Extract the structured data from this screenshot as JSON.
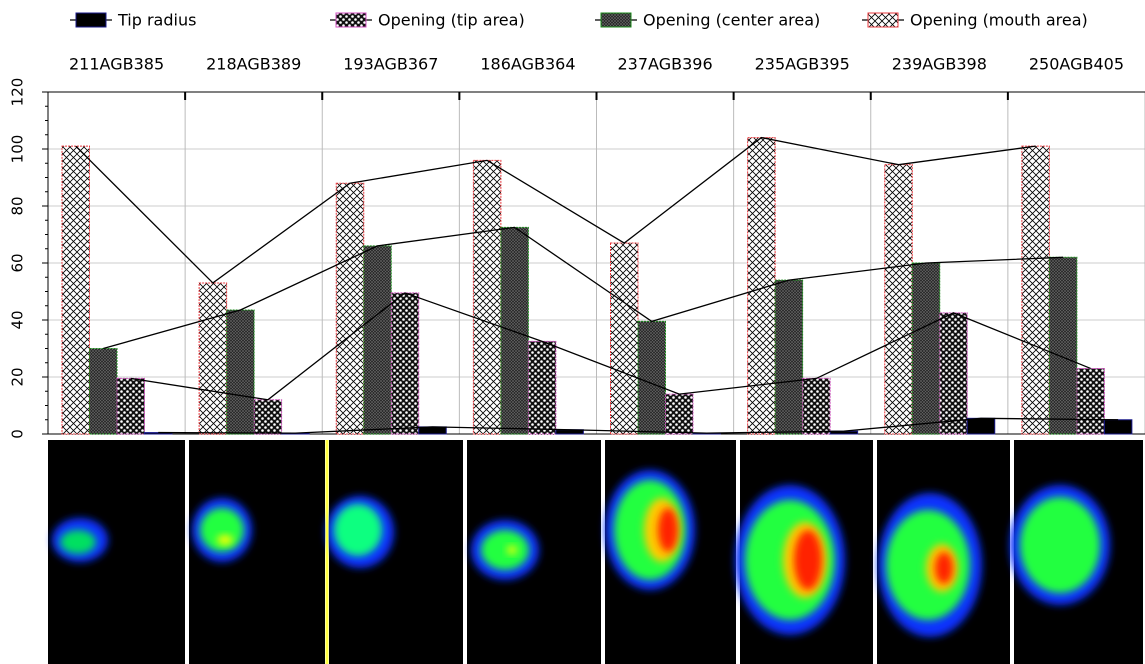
{
  "chart_data": {
    "type": "bar",
    "categories": [
      "211AGB385",
      "218AGB389",
      "193AGB367",
      "186AGB364",
      "237AGB396",
      "235AGB395",
      "239AGB398",
      "250AGB405"
    ],
    "series": [
      {
        "name": "Opening (mouth area)",
        "color": "#e8383d",
        "values": [
          101,
          53,
          88,
          96,
          67,
          104,
          94.5,
          101
        ]
      },
      {
        "name": "Opening (center area)",
        "color": "#1a8a1a",
        "values": [
          30,
          43.5,
          66,
          72.5,
          39.5,
          54,
          60,
          62
        ]
      },
      {
        "name": "Opening (tip area)",
        "color": "#d050c0",
        "values": [
          19.5,
          12,
          49.5,
          32.5,
          14,
          19.5,
          42.5,
          23
        ]
      },
      {
        "name": "Tip radius",
        "color": "#1a1a8a",
        "values": [
          0.5,
          0.3,
          2.5,
          1.5,
          0.3,
          1,
          5.5,
          5
        ]
      }
    ],
    "legend_order": [
      3,
      2,
      1,
      0
    ],
    "ylim": [
      0,
      120
    ],
    "yticks": [
      0,
      20,
      40,
      60,
      80,
      100,
      120
    ],
    "grid": true
  }
}
